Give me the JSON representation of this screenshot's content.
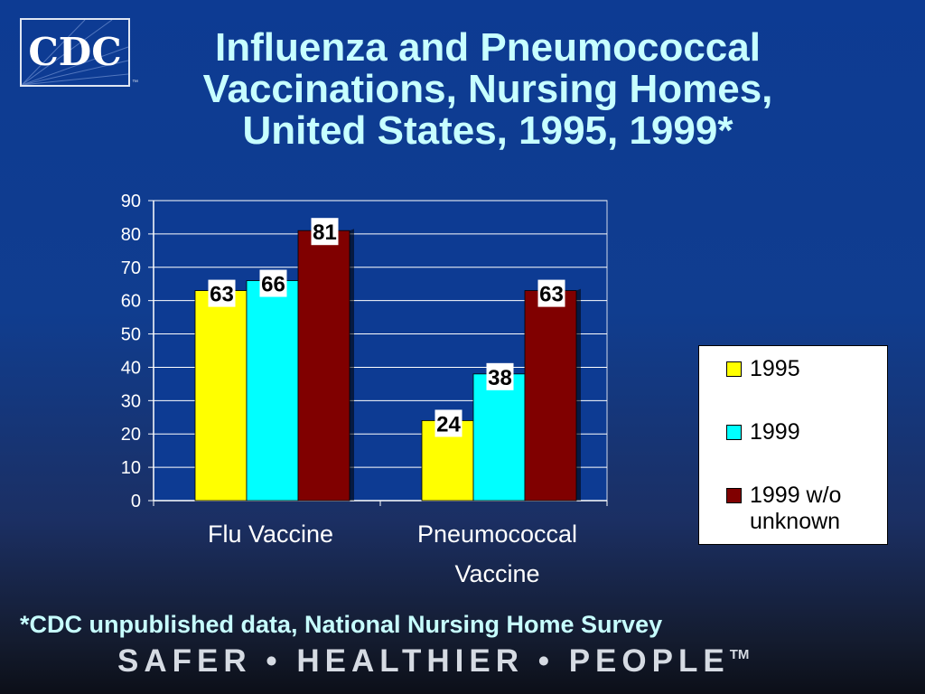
{
  "logo": {
    "text": "CDC",
    "tm": "™"
  },
  "title_lines": [
    "Influenza and Pneumococcal",
    "Vaccinations, Nursing Homes,",
    "United States, 1995, 1999*"
  ],
  "footnote": "*CDC unpublished data, National Nursing Home Survey",
  "tagline": {
    "text": "SAFER • HEALTHIER • PEOPLE",
    "tm": "TM"
  },
  "colors": {
    "1995": "#ffff00",
    "1999": "#00ffff",
    "1999 w/o unknown": "#800000"
  },
  "chart_data": {
    "type": "bar",
    "title": "Influenza and Pneumococcal Vaccinations, Nursing Homes, United States, 1995, 1999*",
    "categories": [
      "Flu Vaccine",
      "Pneumococcal Vaccine"
    ],
    "category_lines": [
      [
        "Flu Vaccine"
      ],
      [
        "Pneumococcal",
        "Vaccine"
      ]
    ],
    "series": [
      {
        "name": "1995",
        "values": [
          63,
          24
        ],
        "color": "#ffff00"
      },
      {
        "name": "1999",
        "values": [
          66,
          38
        ],
        "color": "#00ffff"
      },
      {
        "name": "1999 w/o unknown",
        "legend_lines": [
          "1999 w/o",
          "unknown"
        ],
        "values": [
          81,
          63
        ],
        "color": "#800000"
      }
    ],
    "ylim": [
      0,
      90
    ],
    "yticks": [
      0,
      10,
      20,
      30,
      40,
      50,
      60,
      70,
      80,
      90
    ],
    "grid": true,
    "legend_position": "right",
    "data_labels": true
  }
}
